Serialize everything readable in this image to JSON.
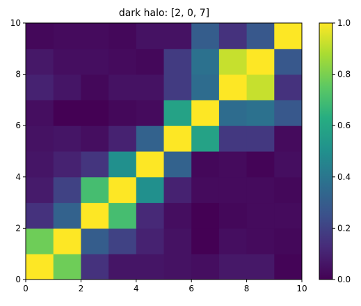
{
  "chart_data": {
    "type": "heatmap",
    "title": "dark halo: [2, 0, 7]",
    "xlabel": "",
    "ylabel": "",
    "xlim": [
      0,
      10
    ],
    "ylim": [
      0,
      10
    ],
    "x_ticks": [
      0,
      2,
      4,
      6,
      8,
      10
    ],
    "y_ticks": [
      0,
      2,
      4,
      6,
      8,
      10
    ],
    "colormap": "viridis",
    "colorbar": {
      "range": [
        0.0,
        1.0
      ],
      "ticks": [
        0.0,
        0.2,
        0.4,
        0.6,
        0.8,
        1.0
      ],
      "tick_labels": [
        "0.0",
        "0.2",
        "0.4",
        "0.6",
        "0.8",
        "1.0"
      ]
    },
    "grid": false,
    "values_row_from_bottom": [
      [
        1.0,
        0.78,
        0.15,
        0.06,
        0.06,
        0.05,
        0.04,
        0.07,
        0.07,
        0.01
      ],
      [
        0.78,
        1.0,
        0.3,
        0.2,
        0.1,
        0.05,
        0.0,
        0.04,
        0.03,
        0.02
      ],
      [
        0.15,
        0.32,
        1.0,
        0.7,
        0.12,
        0.04,
        0.0,
        0.02,
        0.03,
        0.03
      ],
      [
        0.08,
        0.2,
        0.7,
        1.0,
        0.5,
        0.1,
        0.03,
        0.03,
        0.03,
        0.02
      ],
      [
        0.06,
        0.1,
        0.16,
        0.5,
        1.0,
        0.32,
        0.02,
        0.03,
        0.01,
        0.04
      ],
      [
        0.05,
        0.06,
        0.04,
        0.1,
        0.32,
        1.0,
        0.58,
        0.17,
        0.17,
        0.03
      ],
      [
        0.04,
        0.0,
        0.0,
        0.02,
        0.03,
        0.58,
        1.0,
        0.36,
        0.38,
        0.28
      ],
      [
        0.1,
        0.06,
        0.02,
        0.05,
        0.05,
        0.18,
        0.36,
        1.0,
        0.92,
        0.15
      ],
      [
        0.07,
        0.04,
        0.04,
        0.03,
        0.02,
        0.18,
        0.38,
        0.92,
        1.0,
        0.28
      ],
      [
        0.02,
        0.03,
        0.03,
        0.02,
        0.05,
        0.05,
        0.3,
        0.15,
        0.28,
        1.0
      ]
    ]
  }
}
